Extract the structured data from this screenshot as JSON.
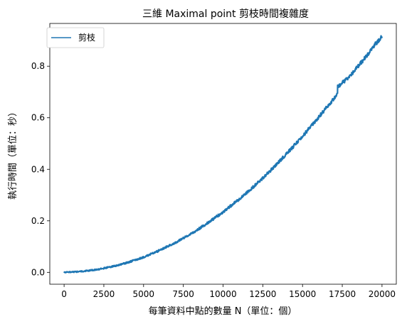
{
  "chart_data": {
    "type": "line",
    "title": "三維 Maximal point 剪枝時間複雜度",
    "xlabel": "每筆資料中點的數量 N（單位：個）",
    "ylabel": "執行時間（單位：秒）",
    "xlim": [
      -900,
      20900
    ],
    "ylim": [
      -0.046,
      0.966
    ],
    "x_ticks": [
      0,
      2500,
      5000,
      7500,
      10000,
      12500,
      15000,
      17500,
      20000
    ],
    "x_tick_labels": [
      "0",
      "2500",
      "5000",
      "7500",
      "10000",
      "12500",
      "15000",
      "17500",
      "20000"
    ],
    "y_ticks": [
      0.0,
      0.2,
      0.4,
      0.6,
      0.8
    ],
    "y_tick_labels": [
      "0.0",
      "0.2",
      "0.4",
      "0.6",
      "0.8"
    ],
    "grid": false,
    "legend": "top-left",
    "series": [
      {
        "name": "剪枝",
        "color": "#1f77b4",
        "x": [
          0,
          1000,
          2000,
          3000,
          4000,
          5000,
          6000,
          7000,
          8000,
          9000,
          10000,
          11000,
          12000,
          13000,
          14000,
          15000,
          16000,
          17000,
          17200,
          17210,
          18000,
          19000,
          19500,
          20000
        ],
        "y": [
          0.0,
          0.003,
          0.01,
          0.022,
          0.038,
          0.059,
          0.085,
          0.115,
          0.15,
          0.19,
          0.234,
          0.283,
          0.337,
          0.396,
          0.46,
          0.528,
          0.601,
          0.676,
          0.692,
          0.72,
          0.762,
          0.838,
          0.88,
          0.915
        ]
      }
    ]
  }
}
